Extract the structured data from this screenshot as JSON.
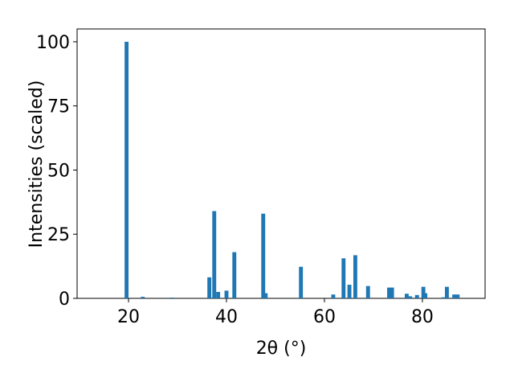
{
  "chart_data": {
    "type": "bar",
    "xlabel": "2θ (°)",
    "ylabel": "Intensities (scaled)",
    "x": [
      19.6,
      22.9,
      28.8,
      36.5,
      37.5,
      38.3,
      40.0,
      41.6,
      47.5,
      48.0,
      55.2,
      61.8,
      63.9,
      65.1,
      66.3,
      68.9,
      73.2,
      73.8,
      76.8,
      77.5,
      78.9,
      80.2,
      80.6,
      84.3,
      85.0,
      86.5,
      87.2
    ],
    "values": [
      100,
      0.6,
      0.3,
      8.2,
      34,
      2.5,
      3,
      18,
      33,
      2,
      12.3,
      1.5,
      15.6,
      5.3,
      16.8,
      4.8,
      4.2,
      4.2,
      1.8,
      0.8,
      1.3,
      4.5,
      2,
      0.4,
      4.5,
      1.5,
      1.5
    ],
    "color": "#1f77b4",
    "xlim": [
      9.5,
      92.8
    ],
    "xticks": [
      20,
      40,
      60,
      80
    ],
    "ylim": [
      0,
      105
    ],
    "yticks": [
      0,
      25,
      50,
      75,
      100
    ]
  }
}
